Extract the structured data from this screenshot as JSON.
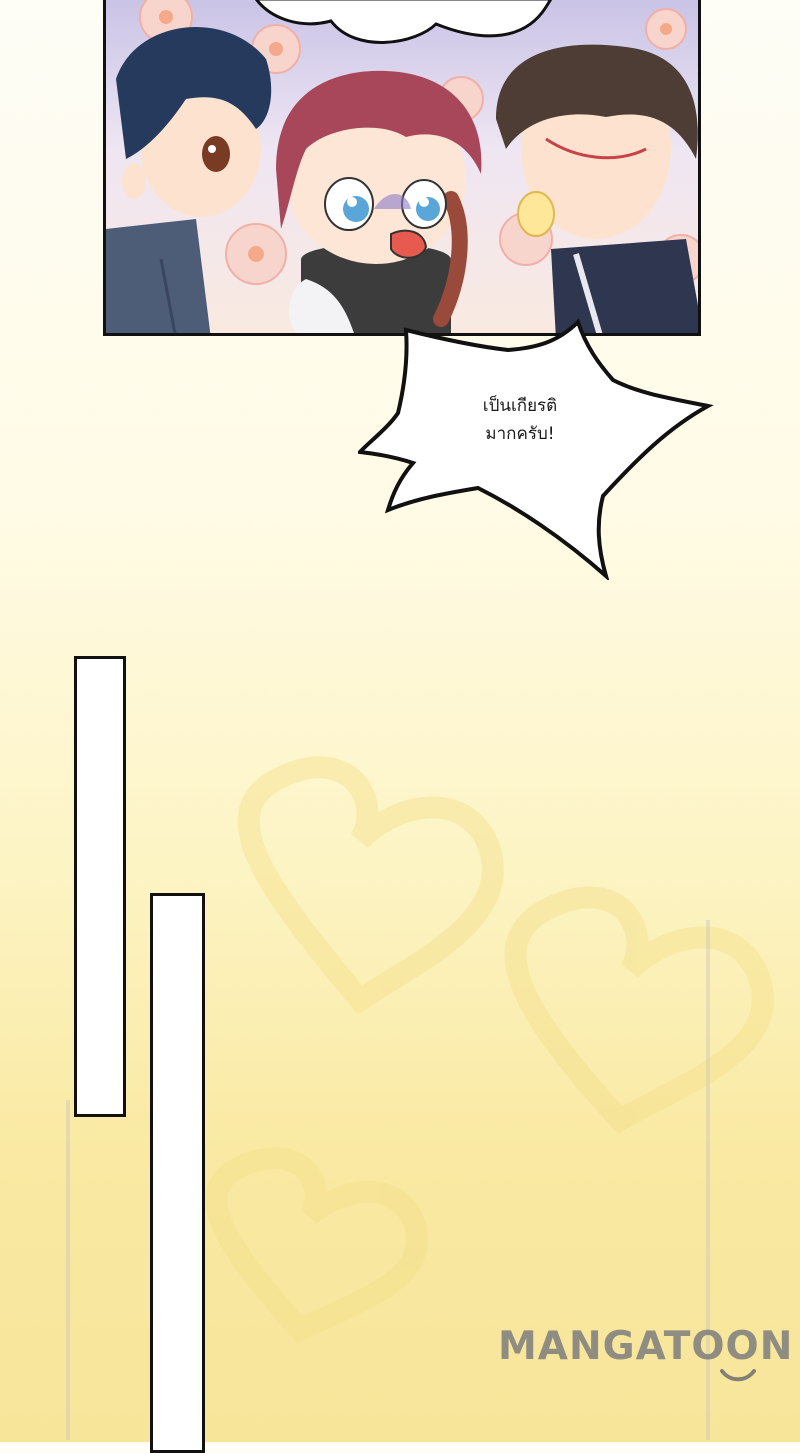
{
  "speech_bubble": {
    "line1": "เป็นเกียรติ",
    "line2": "มากครับ!"
  },
  "watermark": {
    "text": "MANGATOON"
  },
  "colors": {
    "background_top": "#fefdf6",
    "background_bottom": "#f7e59a",
    "panel_border": "#111111",
    "bar_fill": "#ffffff"
  },
  "panel": {
    "characters": [
      "dark-haired-boy",
      "red-haired-girl",
      "brown-haired-boy"
    ]
  }
}
